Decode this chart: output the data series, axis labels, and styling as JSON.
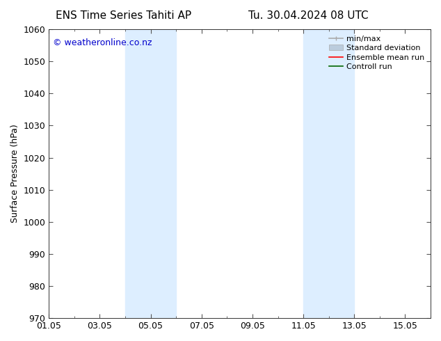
{
  "title_left": "ENS Time Series Tahiti AP",
  "title_right": "Tu. 30.04.2024 08 UTC",
  "ylabel": "Surface Pressure (hPa)",
  "watermark": "© weatheronline.co.nz",
  "watermark_color": "#0000cc",
  "ylim": [
    970,
    1060
  ],
  "yticks": [
    970,
    980,
    990,
    1000,
    1010,
    1020,
    1030,
    1040,
    1050,
    1060
  ],
  "xtick_labels": [
    "01.05",
    "03.05",
    "05.05",
    "07.05",
    "09.05",
    "11.05",
    "13.05",
    "15.05"
  ],
  "xtick_positions": [
    0,
    2,
    4,
    6,
    8,
    10,
    12,
    14
  ],
  "xlim": [
    0,
    15
  ],
  "shaded_bands": [
    {
      "x_start": 3,
      "x_end": 5,
      "color": "#ddeeff"
    },
    {
      "x_start": 10,
      "x_end": 12,
      "color": "#ddeeff"
    }
  ],
  "legend_entries": [
    {
      "label": "min/max",
      "color": "#aaaaaa",
      "lw": 1.2
    },
    {
      "label": "Standard deviation",
      "color": "#bbccdd",
      "lw": 6
    },
    {
      "label": "Ensemble mean run",
      "color": "#ff0000",
      "lw": 1.2
    },
    {
      "label": "Controll run",
      "color": "#006600",
      "lw": 1.2
    }
  ],
  "bg_color": "#ffffff",
  "tick_color": "#000000",
  "title_fontsize": 11,
  "tick_fontsize": 9,
  "ylabel_fontsize": 9,
  "legend_fontsize": 8,
  "watermark_fontsize": 9
}
